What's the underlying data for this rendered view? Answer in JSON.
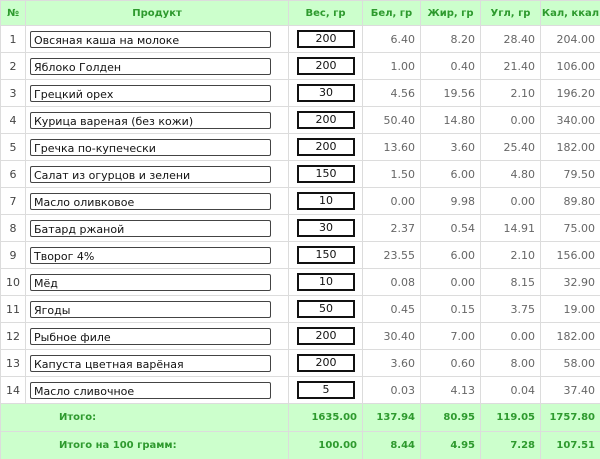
{
  "table": {
    "headers": [
      "№",
      "Продукт",
      "Вес, гр",
      "Бел, гр",
      "Жир, гр",
      "Угл, гр",
      "Кал, ккал"
    ],
    "rows": [
      [
        "1",
        "Овсяная каша на молоке",
        "200",
        "6.40",
        "8.20",
        "28.40",
        "204.00"
      ],
      [
        "2",
        "Яблоко Голден",
        "200",
        "1.00",
        "0.40",
        "21.40",
        "106.00"
      ],
      [
        "3",
        "Грецкий орех",
        "30",
        "4.56",
        "19.56",
        "2.10",
        "196.20"
      ],
      [
        "4",
        "Курица вареная (без кожи)",
        "200",
        "50.40",
        "14.80",
        "0.00",
        "340.00"
      ],
      [
        "5",
        "Гречка по-купечески",
        "200",
        "13.60",
        "3.60",
        "25.40",
        "182.00"
      ],
      [
        "6",
        "Салат из огурцов и зелени",
        "150",
        "1.50",
        "6.00",
        "4.80",
        "79.50"
      ],
      [
        "7",
        "Масло оливковое",
        "10",
        "0.00",
        "9.98",
        "0.00",
        "89.80"
      ],
      [
        "8",
        "Батард ржаной",
        "30",
        "2.37",
        "0.54",
        "14.91",
        "75.00"
      ],
      [
        "9",
        "Творог 4%",
        "150",
        "23.55",
        "6.00",
        "2.10",
        "156.00"
      ],
      [
        "10",
        "Мёд",
        "10",
        "0.08",
        "0.00",
        "8.15",
        "32.90"
      ],
      [
        "11",
        "Ягоды",
        "50",
        "0.45",
        "0.15",
        "3.75",
        "19.00"
      ],
      [
        "12",
        "Рыбное филе",
        "200",
        "30.40",
        "7.00",
        "0.00",
        "182.00"
      ],
      [
        "13",
        "Капуста цветная варёная",
        "200",
        "3.60",
        "0.60",
        "8.00",
        "58.00"
      ],
      [
        "14",
        "Масло сливочное",
        "5",
        "0.03",
        "4.13",
        "0.04",
        "37.40"
      ]
    ],
    "totals": [
      [
        "Итого:",
        "1635.00",
        "137.94",
        "80.95",
        "119.05",
        "1757.80"
      ],
      [
        "Итого на 100 грамм:",
        "100.00",
        "8.44",
        "4.95",
        "7.28",
        "107.51"
      ]
    ]
  }
}
